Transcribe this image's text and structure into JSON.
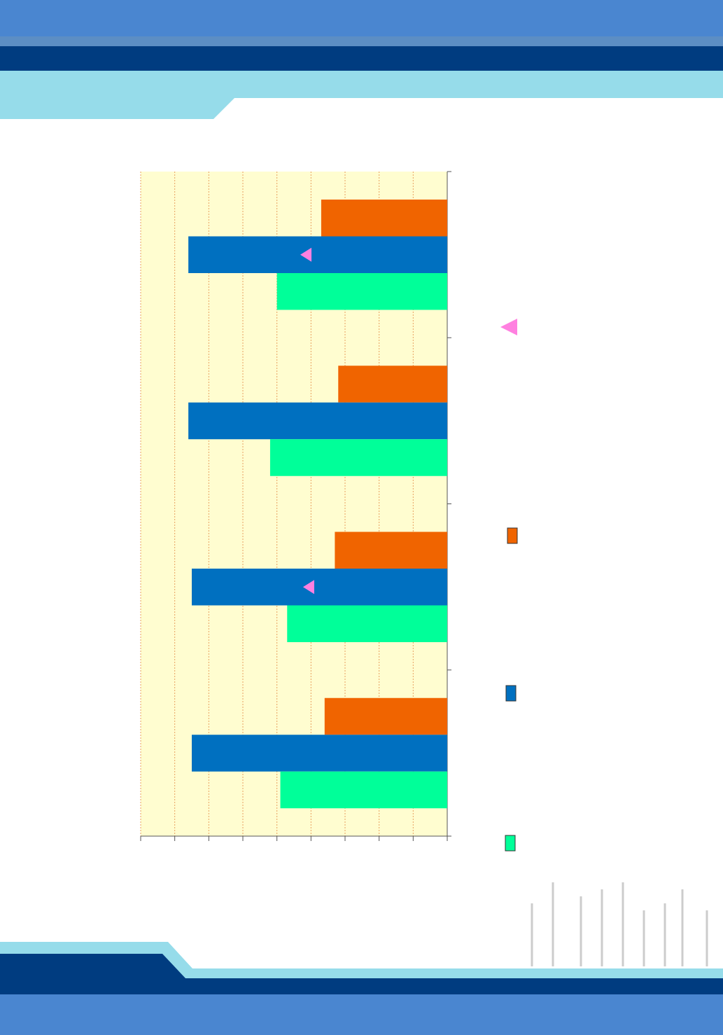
{
  "chart_data": {
    "type": "bar",
    "orientation": "horizontal",
    "categories": [
      null,
      null,
      null,
      null
    ],
    "series": [
      {
        "color": "#f06400",
        "values": [
          37,
          32,
          33,
          36
        ]
      },
      {
        "color": "#0070c0",
        "values": [
          76,
          76,
          75,
          75
        ]
      },
      {
        "color": "#00ff99",
        "values": [
          50,
          52,
          47,
          49
        ]
      },
      {
        "color": "#ff80e0",
        "marker": "triangle",
        "values": [
          41.5,
          null,
          40.7,
          null
        ]
      }
    ],
    "xlim": [
      90,
      0
    ],
    "xticks": [
      0,
      10,
      20,
      30,
      40,
      50,
      60,
      70,
      80,
      90
    ],
    "grid": true
  }
}
